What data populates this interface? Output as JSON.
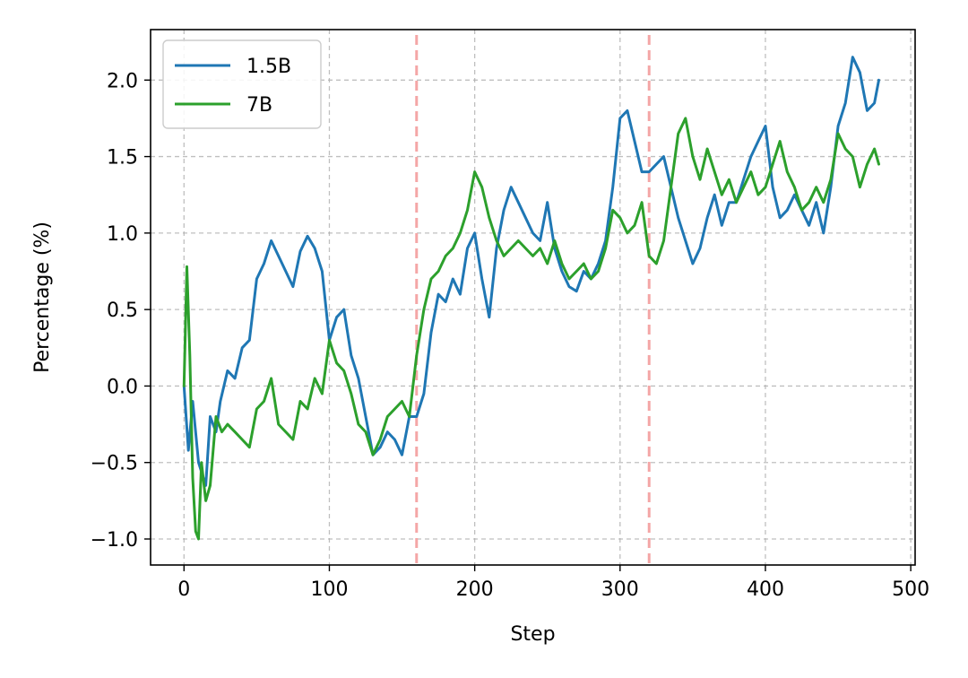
{
  "chart_data": {
    "type": "line",
    "title": "",
    "xlabel": "Step",
    "ylabel": "Percentage (%)",
    "xlim": [
      -23,
      503
    ],
    "ylim": [
      -1.17,
      2.33
    ],
    "x_ticks": [
      0,
      100,
      200,
      300,
      400,
      500
    ],
    "y_ticks": [
      -1.0,
      -0.5,
      0.0,
      0.5,
      1.0,
      1.5,
      2.0
    ],
    "x_tick_labels": [
      "0",
      "100",
      "200",
      "300",
      "400",
      "500"
    ],
    "y_tick_labels": [
      "−1.0",
      "−0.5",
      "0.0",
      "0.5",
      "1.0",
      "1.5",
      "2.0"
    ],
    "grid": true,
    "legend_position": "upper-left",
    "vertical_markers": [
      160,
      320
    ],
    "vertical_marker_color": "#f4a6a6",
    "series": [
      {
        "name": "1.5B",
        "color": "#1f77b4",
        "x": [
          0,
          3,
          6,
          10,
          15,
          18,
          22,
          25,
          30,
          35,
          40,
          45,
          50,
          55,
          60,
          65,
          70,
          75,
          80,
          85,
          90,
          95,
          100,
          105,
          110,
          115,
          120,
          125,
          130,
          135,
          140,
          145,
          150,
          155,
          160,
          165,
          170,
          175,
          180,
          185,
          190,
          195,
          200,
          205,
          210,
          215,
          220,
          225,
          230,
          235,
          240,
          245,
          250,
          255,
          260,
          265,
          270,
          275,
          280,
          285,
          290,
          295,
          300,
          305,
          310,
          315,
          320,
          325,
          330,
          335,
          340,
          345,
          350,
          355,
          360,
          365,
          370,
          375,
          380,
          385,
          390,
          395,
          400,
          405,
          410,
          415,
          420,
          425,
          430,
          435,
          440,
          445,
          450,
          455,
          460,
          465,
          470,
          475,
          478
        ],
        "values": [
          0.0,
          -0.42,
          -0.1,
          -0.5,
          -0.65,
          -0.2,
          -0.3,
          -0.1,
          0.1,
          0.05,
          0.25,
          0.3,
          0.7,
          0.8,
          0.95,
          0.85,
          0.75,
          0.65,
          0.88,
          0.98,
          0.9,
          0.75,
          0.3,
          0.45,
          0.5,
          0.2,
          0.05,
          -0.2,
          -0.45,
          -0.4,
          -0.3,
          -0.35,
          -0.45,
          -0.2,
          -0.2,
          -0.05,
          0.35,
          0.6,
          0.55,
          0.7,
          0.6,
          0.9,
          1.0,
          0.7,
          0.45,
          0.9,
          1.15,
          1.3,
          1.2,
          1.1,
          1.0,
          0.95,
          1.2,
          0.9,
          0.75,
          0.65,
          0.62,
          0.75,
          0.7,
          0.8,
          0.95,
          1.3,
          1.75,
          1.8,
          1.6,
          1.4,
          1.4,
          1.45,
          1.5,
          1.3,
          1.1,
          0.95,
          0.8,
          0.9,
          1.1,
          1.25,
          1.05,
          1.2,
          1.2,
          1.35,
          1.5,
          1.6,
          1.7,
          1.3,
          1.1,
          1.15,
          1.25,
          1.15,
          1.05,
          1.2,
          1.0,
          1.3,
          1.7,
          1.85,
          2.15,
          2.05,
          1.8,
          1.85,
          2.0
        ]
      },
      {
        "name": "7B",
        "color": "#2ca02c",
        "x": [
          0,
          2,
          4,
          6,
          8,
          10,
          12,
          15,
          18,
          22,
          26,
          30,
          35,
          40,
          45,
          50,
          55,
          60,
          65,
          70,
          75,
          80,
          85,
          90,
          95,
          100,
          105,
          110,
          115,
          120,
          125,
          130,
          135,
          140,
          145,
          150,
          155,
          160,
          165,
          170,
          175,
          180,
          185,
          190,
          195,
          200,
          205,
          210,
          215,
          220,
          225,
          230,
          235,
          240,
          245,
          250,
          255,
          260,
          265,
          270,
          275,
          280,
          285,
          290,
          295,
          300,
          305,
          310,
          315,
          320,
          325,
          330,
          335,
          340,
          345,
          350,
          355,
          360,
          365,
          370,
          375,
          380,
          385,
          390,
          395,
          400,
          405,
          410,
          415,
          420,
          425,
          430,
          435,
          440,
          445,
          450,
          455,
          460,
          465,
          470,
          475,
          478
        ],
        "values": [
          0.0,
          0.78,
          0.2,
          -0.6,
          -0.95,
          -1.0,
          -0.5,
          -0.75,
          -0.65,
          -0.2,
          -0.3,
          -0.25,
          -0.3,
          -0.35,
          -0.4,
          -0.15,
          -0.1,
          0.05,
          -0.25,
          -0.3,
          -0.35,
          -0.1,
          -0.15,
          0.05,
          -0.05,
          0.3,
          0.15,
          0.1,
          -0.05,
          -0.25,
          -0.3,
          -0.45,
          -0.35,
          -0.2,
          -0.15,
          -0.1,
          -0.2,
          0.2,
          0.5,
          0.7,
          0.75,
          0.85,
          0.9,
          1.0,
          1.15,
          1.4,
          1.3,
          1.1,
          0.95,
          0.85,
          0.9,
          0.95,
          0.9,
          0.85,
          0.9,
          0.8,
          0.95,
          0.8,
          0.7,
          0.75,
          0.8,
          0.7,
          0.75,
          0.9,
          1.15,
          1.1,
          1.0,
          1.05,
          1.2,
          0.85,
          0.8,
          0.95,
          1.3,
          1.65,
          1.75,
          1.5,
          1.35,
          1.55,
          1.4,
          1.25,
          1.35,
          1.2,
          1.3,
          1.4,
          1.25,
          1.3,
          1.45,
          1.6,
          1.4,
          1.3,
          1.15,
          1.2,
          1.3,
          1.2,
          1.35,
          1.65,
          1.55,
          1.5,
          1.3,
          1.45,
          1.55,
          1.45
        ]
      }
    ]
  }
}
